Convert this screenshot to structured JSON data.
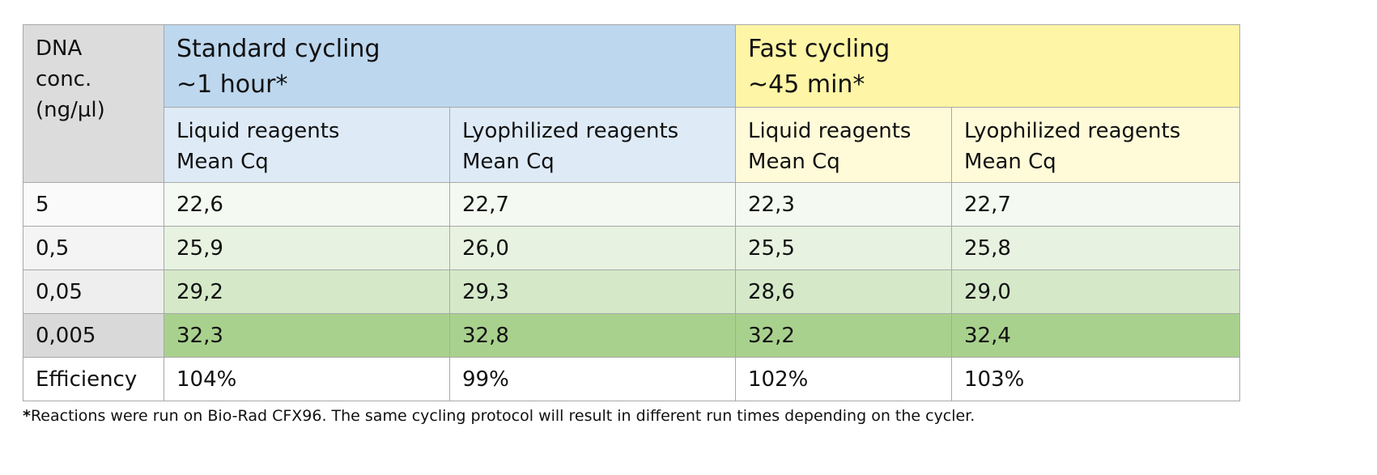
{
  "header": {
    "dna_label": [
      "DNA",
      "conc.",
      "(ng/µl)"
    ],
    "standard": {
      "title": "Standard cycling",
      "time": "~1 hour*"
    },
    "fast": {
      "title": "Fast cycling",
      "time": "~45 min*"
    },
    "subcolumns": [
      {
        "line1": "Liquid reagents",
        "line2": "Mean Cq"
      },
      {
        "line1": "Lyophilized reagents",
        "line2": "Mean Cq"
      },
      {
        "line1": "Liquid reagents",
        "line2": "Mean Cq"
      },
      {
        "line1": "Lyophilized reagents",
        "line2": "Mean Cq"
      }
    ]
  },
  "rows": [
    {
      "conc": "5",
      "values": [
        "22,6",
        "22,7",
        "22,3",
        "22,7"
      ],
      "label_bg": "#fafafa",
      "bg": "#f4f9f1"
    },
    {
      "conc": "0,5",
      "values": [
        "25,9",
        "26,0",
        "25,5",
        "25,8"
      ],
      "label_bg": "#f4f4f4",
      "bg": "#e7f2e0"
    },
    {
      "conc": "0,05",
      "values": [
        "29,2",
        "29,3",
        "28,6",
        "29,0"
      ],
      "label_bg": "#eeeeee",
      "bg": "#d5e9c9"
    },
    {
      "conc": "0,005",
      "values": [
        "32,3",
        "32,8",
        "32,2",
        "32,4"
      ],
      "label_bg": "#d9d9d9",
      "bg": "#a9d18e"
    },
    {
      "conc": "Efficiency",
      "values": [
        "104%",
        "99%",
        "102%",
        "103%"
      ],
      "label_bg": "#ffffff",
      "bg": "#ffffff"
    }
  ],
  "footnote": {
    "mark": "*",
    "text": "Reactions were run on Bio-Rad CFX96. The same cycling protocol will result in different run times depending on the cycler."
  }
}
